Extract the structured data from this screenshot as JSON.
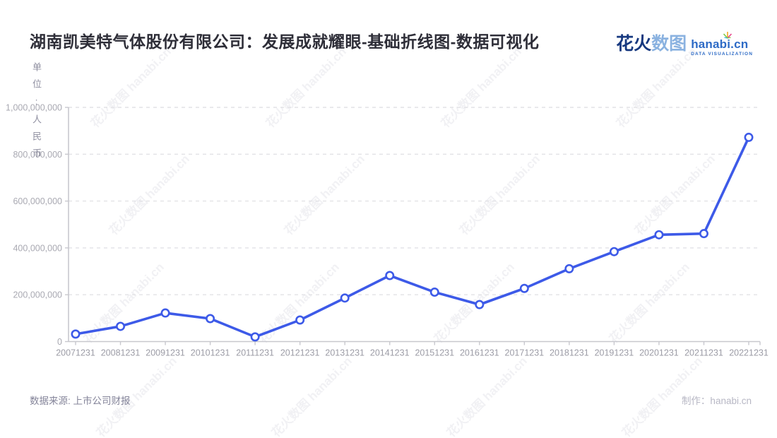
{
  "header": {
    "title": "湖南凯美特气体股份有限公司：发展成就耀眼-基础折线图-数据可视化",
    "logo": {
      "cn_bold": "花火",
      "cn_light": "数图",
      "domain": "hanabi.cn",
      "tagline": "DATA VISUALIZATION",
      "sparkle_icon": "colorful-firework-sparkle",
      "colors": {
        "navy": "#16387f",
        "light_blue": "#8ab2e0",
        "blue": "#2e6bc6"
      }
    }
  },
  "watermark": {
    "text": "花火数图 hanabi.cn"
  },
  "chart_data": {
    "type": "line",
    "title": "湖南凯美特气体股份有限公司：发展成就耀眼-基础折线图-数据可视化",
    "y_axis_name": "单位:人民币",
    "xlabel": "",
    "ylabel": "单位:人民币",
    "categories": [
      "20071231",
      "20081231",
      "20091231",
      "20101231",
      "20111231",
      "20121231",
      "20131231",
      "20141231",
      "20151231",
      "20161231",
      "20171231",
      "20181231",
      "20191231",
      "20201231",
      "20211231",
      "20221231"
    ],
    "values": [
      32000000,
      65000000,
      122000000,
      98000000,
      20000000,
      92000000,
      186000000,
      282000000,
      211000000,
      158000000,
      227000000,
      311000000,
      384000000,
      456000000,
      461000000,
      872000000
    ],
    "y_ticks": [
      {
        "value": 0,
        "label": "0"
      },
      {
        "value": 200000000,
        "label": "200,000,000"
      },
      {
        "value": 400000000,
        "label": "400,000,000"
      },
      {
        "value": 600000000,
        "label": "600,000,000"
      },
      {
        "value": 800000000,
        "label": "800,000,000"
      },
      {
        "value": 1000000000,
        "label": "1,000,000,000"
      }
    ],
    "ylim": [
      0,
      1000000000
    ],
    "grid": "horizontal-dashed",
    "legend": "none",
    "line_color": "#3d5ae8",
    "marker": "hollow-circle",
    "axis_color": "#c8c8ce",
    "grid_color": "#e2e2e6"
  },
  "footer": {
    "source": "数据来源: 上市公司财报",
    "credit": "制作：hanabi.cn"
  }
}
